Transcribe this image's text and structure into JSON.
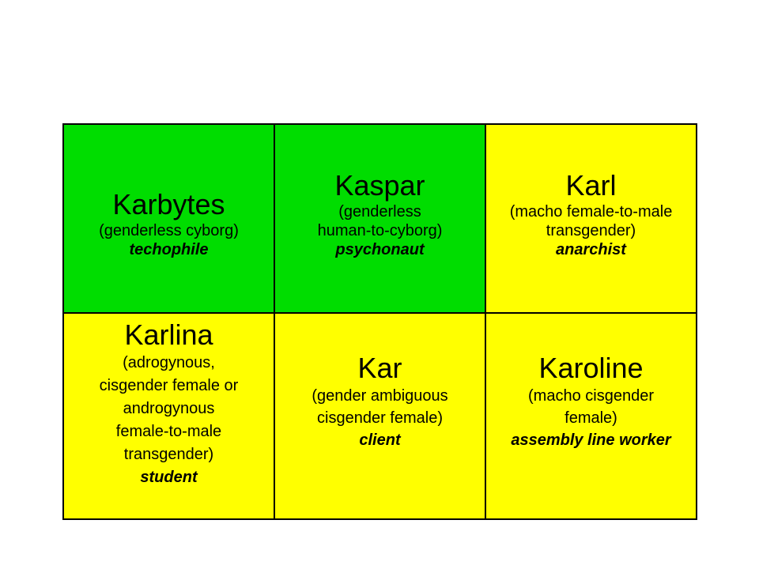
{
  "colors": {
    "green": "#00dd00",
    "yellow": "#ffff00",
    "border": "#000000"
  },
  "cells": [
    {
      "name": "Karbytes",
      "description": "(genderless cyborg)",
      "role": "techophile",
      "color": "#00dd00"
    },
    {
      "name": "Kaspar",
      "description": "(genderless\nhuman-to-cyborg)",
      "role": "psychonaut",
      "color": "#00dd00"
    },
    {
      "name": "Karl",
      "description": "(macho female-to-male\ntransgender)",
      "role": "anarchist",
      "color": "#ffff00"
    },
    {
      "name": "Karlina",
      "description": "(adrogynous,\ncisgender female or\nandrogynous\nfemale-to-male\ntransgender)",
      "role": "student",
      "color": "#ffff00"
    },
    {
      "name": "Kar",
      "description": "(gender ambiguous\ncisgender female)",
      "role": "client",
      "color": "#ffff00"
    },
    {
      "name": "Karoline",
      "description": "(macho cisgender\nfemale)",
      "role": "assembly line worker",
      "color": "#ffff00"
    }
  ]
}
